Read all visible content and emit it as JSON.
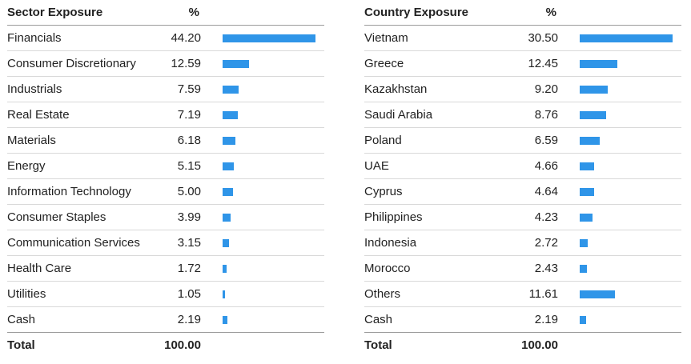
{
  "chart_data": [
    {
      "type": "table",
      "header": {
        "name": "Sector Exposure",
        "value": "%"
      },
      "rows": [
        {
          "name": "Financials",
          "value": "44.20"
        },
        {
          "name": "Consumer Discretionary",
          "value": "12.59"
        },
        {
          "name": "Industrials",
          "value": "7.59"
        },
        {
          "name": "Real Estate",
          "value": "7.19"
        },
        {
          "name": "Materials",
          "value": "6.18"
        },
        {
          "name": "Energy",
          "value": "5.15"
        },
        {
          "name": "Information Technology",
          "value": "5.00"
        },
        {
          "name": "Consumer Staples",
          "value": "3.99"
        },
        {
          "name": "Communication Services",
          "value": "3.15"
        },
        {
          "name": "Health Care",
          "value": "1.72"
        },
        {
          "name": "Utilities",
          "value": "1.05"
        },
        {
          "name": "Cash",
          "value": "2.19"
        }
      ],
      "total": {
        "name": "Total",
        "value": "100.00"
      },
      "bar_color": "#2f95e8"
    },
    {
      "type": "table",
      "header": {
        "name": "Country Exposure",
        "value": "%"
      },
      "rows": [
        {
          "name": "Vietnam",
          "value": "30.50"
        },
        {
          "name": "Greece",
          "value": "12.45"
        },
        {
          "name": "Kazakhstan",
          "value": "9.20"
        },
        {
          "name": "Saudi Arabia",
          "value": "8.76"
        },
        {
          "name": "Poland",
          "value": "6.59"
        },
        {
          "name": "UAE",
          "value": "4.66"
        },
        {
          "name": "Cyprus",
          "value": "4.64"
        },
        {
          "name": "Philippines",
          "value": "4.23"
        },
        {
          "name": "Indonesia",
          "value": "2.72"
        },
        {
          "name": "Morocco",
          "value": "2.43"
        },
        {
          "name": "Others",
          "value": "11.61"
        },
        {
          "name": "Cash",
          "value": "2.19"
        }
      ],
      "total": {
        "name": "Total",
        "value": "100.00"
      },
      "bar_color": "#2f95e8"
    }
  ]
}
